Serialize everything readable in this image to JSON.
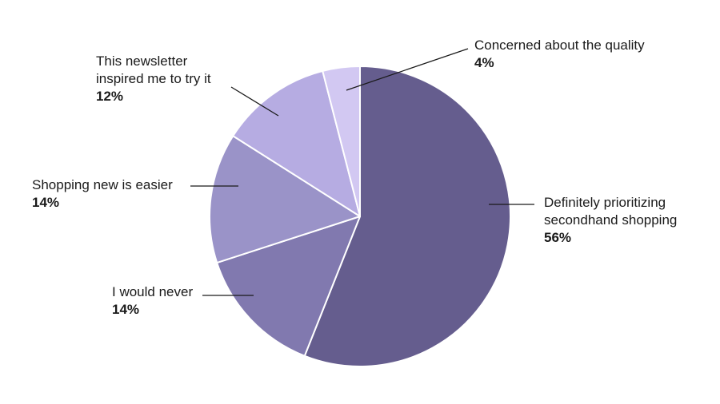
{
  "chart_data": {
    "type": "pie",
    "title": "",
    "start_angle_deg": 0,
    "direction": "clockwise",
    "legend_position": "none",
    "labels_style": "external-leader-lines",
    "total": 100,
    "slices": [
      {
        "label": "Definitely prioritizing secondhand shopping",
        "value": 56,
        "pct": "56%",
        "color": "#655D8E"
      },
      {
        "label": "I would never",
        "value": 14,
        "pct": "14%",
        "color": "#8179AF"
      },
      {
        "label": "Shopping new is easier",
        "value": 14,
        "pct": "14%",
        "color": "#9A93C8"
      },
      {
        "label": "This newsletter inspired me to try it",
        "value": 12,
        "pct": "12%",
        "color": "#B6ACE2"
      },
      {
        "label": "Concerned about the quality",
        "value": 4,
        "pct": "4%",
        "color": "#D2C8F2"
      }
    ]
  },
  "canvas": {
    "background": "#ffffff",
    "text_color": "#1a1a1a",
    "slice_border_color": "#ffffff",
    "leader_line_color": "#1a1a1a"
  }
}
